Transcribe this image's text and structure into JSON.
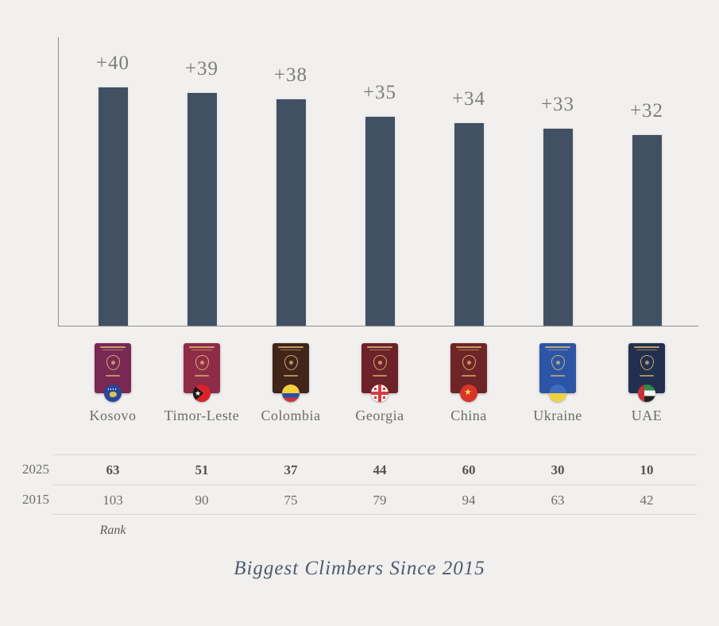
{
  "page": {
    "background": "#f1f0ee",
    "title": "Biggest Climbers Since 2015"
  },
  "chart_data": {
    "type": "bar",
    "title": "Biggest Climbers Since 2015",
    "categories": [
      "Kosovo",
      "Timor-Leste",
      "Colombia",
      "Georgia",
      "China",
      "Ukraine",
      "UAE"
    ],
    "values": [
      40,
      39,
      38,
      35,
      34,
      33,
      32
    ],
    "value_labels": [
      "+40",
      "+39",
      "+38",
      "+35",
      "+34",
      "+33",
      "+32"
    ],
    "bar_color": "#425064",
    "ylim": [
      0,
      44
    ],
    "grid": false,
    "legend": false,
    "table": {
      "row_labels": [
        "2025",
        "2015"
      ],
      "rows": [
        [
          63,
          51,
          37,
          44,
          60,
          30,
          10
        ],
        [
          103,
          90,
          75,
          79,
          94,
          63,
          42
        ]
      ],
      "caption": "Rank"
    }
  },
  "table": {
    "year_top": "2025",
    "year_bottom": "2015",
    "caption": "Rank"
  },
  "countries": [
    {
      "name": "Kosovo",
      "climb": 40,
      "climb_label": "+40",
      "rank_2025": "63",
      "rank_2015": "103",
      "passport_color": "#792853",
      "flag": "kosovo"
    },
    {
      "name": "Timor-Leste",
      "climb": 39,
      "climb_label": "+39",
      "rank_2025": "51",
      "rank_2015": "90",
      "passport_color": "#8e2c47",
      "flag": "timor-leste"
    },
    {
      "name": "Colombia",
      "climb": 38,
      "climb_label": "+38",
      "rank_2025": "37",
      "rank_2015": "75",
      "passport_color": "#41251a",
      "flag": "colombia"
    },
    {
      "name": "Georgia",
      "climb": 35,
      "climb_label": "+35",
      "rank_2025": "44",
      "rank_2015": "79",
      "passport_color": "#6d2129",
      "flag": "georgia"
    },
    {
      "name": "China",
      "climb": 34,
      "climb_label": "+34",
      "rank_2025": "60",
      "rank_2015": "94",
      "passport_color": "#6f2527",
      "flag": "china"
    },
    {
      "name": "Ukraine",
      "climb": 33,
      "climb_label": "+33",
      "rank_2025": "30",
      "rank_2015": "63",
      "passport_color": "#2d55a5",
      "flag": "ukraine"
    },
    {
      "name": "UAE",
      "climb": 32,
      "climb_label": "+32",
      "rank_2025": "10",
      "rank_2015": "42",
      "passport_color": "#232f4e",
      "flag": "uae"
    }
  ]
}
